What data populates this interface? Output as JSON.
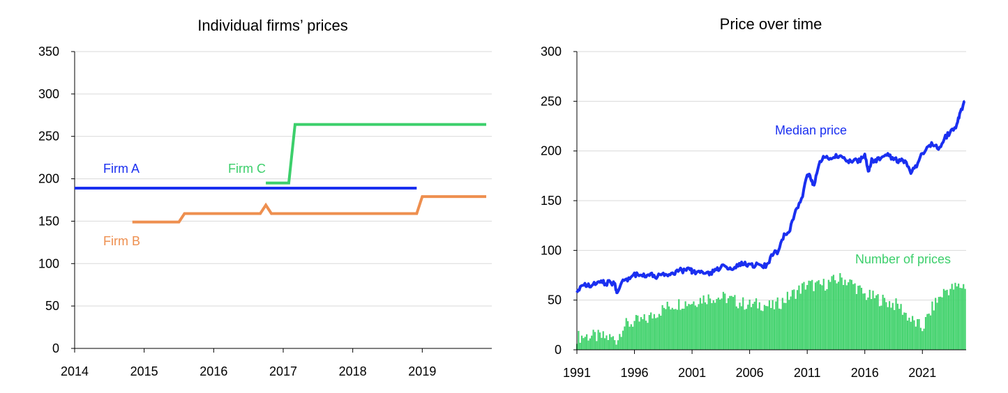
{
  "colors": {
    "blue": "#1a2ff0",
    "orange": "#ee8f4f",
    "green": "#3ccf6b",
    "greenBar": "#45d36f",
    "grid": "#d9d9d9"
  },
  "chart_data": [
    {
      "type": "line",
      "title": "Individual firms’ prices",
      "xlabel": "",
      "ylabel": "",
      "xlim": [
        2014,
        2020
      ],
      "ylim": [
        0,
        350
      ],
      "yticks": [
        0,
        50,
        100,
        150,
        200,
        250,
        300,
        350
      ],
      "xticks": [
        2014,
        2015,
        2016,
        2017,
        2018,
        2019
      ],
      "grid": true,
      "series": [
        {
          "name": "Firm A",
          "color": "#1a2ff0",
          "x": [
            2014.0,
            2018.92
          ],
          "y": [
            189,
            189
          ]
        },
        {
          "name": "Firm B",
          "color": "#ee8f4f",
          "x": [
            2014.83,
            2015.5,
            2015.58,
            2016.67,
            2016.75,
            2016.83,
            2018.92,
            2019.0,
            2019.92
          ],
          "y": [
            149,
            149,
            159,
            159,
            169,
            159,
            159,
            179,
            179
          ]
        },
        {
          "name": "Firm C",
          "color": "#3ccf6b",
          "x": [
            2016.75,
            2017.08,
            2017.17,
            2019.92
          ],
          "y": [
            195,
            195,
            264,
            264
          ]
        }
      ]
    },
    {
      "type": "line+bar",
      "title": "Price over time",
      "xlabel": "",
      "ylabel": "",
      "xlim": [
        1991,
        2024.8
      ],
      "ylim": [
        0,
        300
      ],
      "yticks": [
        0,
        50,
        100,
        150,
        200,
        250,
        300
      ],
      "xticks": [
        1991,
        1996,
        2001,
        2006,
        2011,
        2016,
        2021
      ],
      "grid": true,
      "series": [
        {
          "name": "Median price",
          "type": "line",
          "color": "#1a2ff0",
          "x": [
            1991.0,
            1991.5,
            1992.0,
            1992.5,
            1993.0,
            1993.5,
            1994.0,
            1994.3,
            1994.5,
            1995.0,
            1995.5,
            1996.0,
            1996.5,
            1997.0,
            1997.5,
            1998.0,
            1998.5,
            1999.0,
            1999.5,
            2000.0,
            2000.5,
            2000.9,
            2001.0,
            2001.5,
            2002.0,
            2002.5,
            2003.0,
            2003.5,
            2004.0,
            2004.5,
            2005.0,
            2005.5,
            2006.0,
            2006.5,
            2007.0,
            2007.5,
            2008.0,
            2008.5,
            2009.0,
            2009.5,
            2010.0,
            2010.5,
            2011.0,
            2011.3,
            2011.6,
            2012.0,
            2012.5,
            2013.0,
            2013.5,
            2014.0,
            2014.5,
            2015.0,
            2015.5,
            2016.0,
            2016.3,
            2016.6,
            2017.0,
            2017.5,
            2018.0,
            2018.5,
            2019.0,
            2019.5,
            2020.0,
            2020.5,
            2021.0,
            2021.5,
            2022.0,
            2022.5,
            2023.0,
            2023.5,
            2024.0,
            2024.3,
            2024.7
          ],
          "y": [
            60,
            64,
            65,
            66,
            68,
            67,
            68,
            65,
            58,
            70,
            72,
            75,
            77,
            74,
            75,
            74,
            76,
            77,
            78,
            80,
            79,
            84,
            78,
            79,
            76,
            77,
            79,
            84,
            84,
            82,
            85,
            88,
            85,
            85,
            85,
            84,
            97,
            99,
            115,
            122,
            140,
            150,
            178,
            172,
            165,
            185,
            195,
            191,
            195,
            196,
            190,
            190,
            190,
            195,
            180,
            190,
            190,
            194,
            196,
            192,
            190,
            189,
            179,
            185,
            198,
            205,
            207,
            203,
            214,
            220,
            226,
            240,
            250
          ]
        },
        {
          "name": "Number of prices",
          "type": "bar",
          "color": "#45d36f",
          "x": [
            1991,
            1992,
            1993,
            1994,
            1994.5,
            1995,
            1996,
            1997,
            1998,
            1999,
            2000,
            2001,
            2002,
            2003,
            2004,
            2005,
            2006,
            2007,
            2008,
            2009,
            2010,
            2011,
            2012,
            2013,
            2014,
            2015,
            2016,
            2017,
            2018,
            2019,
            2020,
            2021,
            2022,
            2023,
            2024.7
          ],
          "y": [
            13,
            14,
            13,
            12,
            10,
            24,
            28,
            30,
            38,
            44,
            47,
            48,
            52,
            53,
            52,
            48,
            45,
            46,
            43,
            50,
            58,
            66,
            64,
            68,
            72,
            66,
            55,
            52,
            48,
            44,
            30,
            22,
            45,
            60,
            65
          ]
        }
      ],
      "annotations": [
        "Median price",
        "Number of prices"
      ]
    }
  ],
  "labels": {
    "firmA": "Firm A",
    "firmB": "Firm B",
    "firmC": "Firm C",
    "median": "Median price",
    "number": "Number of prices"
  }
}
